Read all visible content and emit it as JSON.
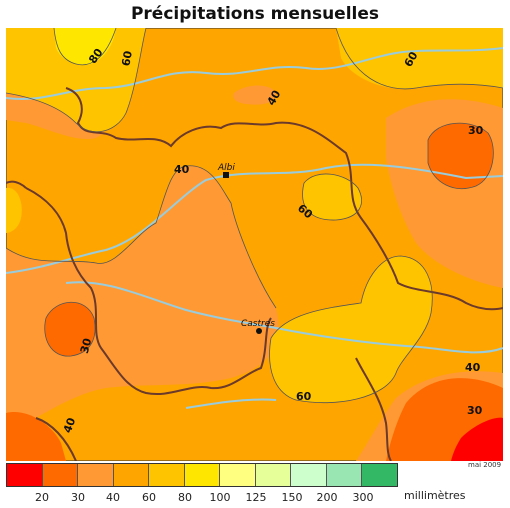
{
  "title": "Précipitations mensuelles",
  "credit": "mai 2009",
  "legend": {
    "unit": "millimètres",
    "ticks": [
      "20",
      "30",
      "40",
      "60",
      "80",
      "100",
      "125",
      "150",
      "200",
      "300"
    ],
    "colors": [
      "#ff0000",
      "#ff6a00",
      "#ff9933",
      "#ffa500",
      "#ffc400",
      "#ffe600",
      "#ffff80",
      "#e6ff99",
      "#ccffcc",
      "#99e6b3",
      "#33b866"
    ]
  },
  "map": {
    "contour_labels": [
      "80",
      "60",
      "40",
      "60",
      "30",
      "40",
      "60",
      "30",
      "60",
      "40",
      "30",
      "40"
    ],
    "place_names": [
      "Albi",
      "Castres"
    ],
    "colors": {
      "fill_40_60": "#ffa500",
      "fill_30_40": "#ff9933",
      "fill_60_80": "#ffc400",
      "fill_80_100": "#ffe600",
      "fill_20_30": "#ff6a00",
      "fill_below_20": "#ff0000",
      "borders": "#6b3a2a",
      "rivers": "#99ccdd",
      "contours": "#555555"
    }
  }
}
